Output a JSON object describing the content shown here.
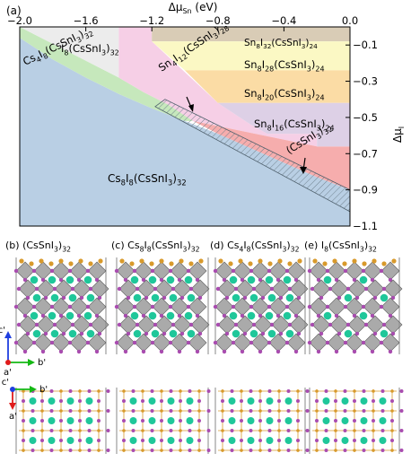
{
  "colors": {
    "cs8i8": "#b9cfe4",
    "cs4i8": "#c6e8bc",
    "i8": "#ececec",
    "sn8i32": "#d9ccb6",
    "sn8i28": "#fbf8c4",
    "sn8i20": "#fbdca5",
    "sn8i16": "#ddd0e6",
    "sn4i12": "#f6cfe6",
    "cssni3": "#f6adad",
    "sn": "#d89a2c",
    "i": "#a94cb0",
    "cs": "#1fc79a",
    "octa": "#8e8e8e",
    "axis_c": "#1f3fe0",
    "axis_b": "#14b814",
    "axis_a": "#e01b1b"
  },
  "chart_data": {
    "type": "area",
    "panel_label": "(a)",
    "xlabel": "Δμ_Sn (eV)",
    "ylabel": "Δμ_I",
    "xlim": [
      -2.0,
      0.0
    ],
    "ylim": [
      -1.1,
      0.0
    ],
    "x_ticks": [
      -2.0,
      -1.6,
      -1.2,
      -0.8,
      -0.4,
      0.0
    ],
    "x_tick_labels": [
      "−2.0",
      "−1.6",
      "−1.2",
      "−0.8",
      "−0.4",
      "0.0"
    ],
    "y_ticks": [
      -0.1,
      -0.3,
      -0.5,
      -0.7,
      -0.9,
      -1.1
    ],
    "y_tick_labels": [
      "−0.1",
      "−0.3",
      "−0.5",
      "−0.7",
      "−0.9",
      "−1.1"
    ],
    "regions": [
      {
        "id": "cs8i8",
        "label": "Cs₈I₈(CsSnI₃)₃₂",
        "polygon": [
          [
            -2.0,
            -0.06
          ],
          [
            -1.8,
            -0.18
          ],
          [
            -1.6,
            -0.28
          ],
          [
            -1.4,
            -0.37
          ],
          [
            -1.2,
            -0.45
          ],
          [
            -1.0,
            -0.52
          ],
          [
            -0.8,
            -0.59
          ],
          [
            -0.6,
            -0.67
          ],
          [
            -0.4,
            -0.75
          ],
          [
            -0.2,
            -0.83
          ],
          [
            0.0,
            -0.9
          ],
          [
            0.0,
            -1.1
          ],
          [
            -2.0,
            -1.1
          ]
        ]
      },
      {
        "id": "cs4i8",
        "label": "Cs₄I₈(CsSnI₃)₃₂",
        "polygon": [
          [
            -2.0,
            -0.06
          ],
          [
            -2.0,
            0.0
          ],
          [
            -1.4,
            -0.28
          ],
          [
            -1.25,
            -0.36
          ],
          [
            -1.1,
            -0.43
          ],
          [
            -0.95,
            -0.52
          ],
          [
            -1.0,
            -0.52
          ],
          [
            -1.2,
            -0.45
          ],
          [
            -1.4,
            -0.37
          ],
          [
            -1.6,
            -0.28
          ],
          [
            -1.8,
            -0.18
          ]
        ]
      },
      {
        "id": "i8",
        "label": "I₈(CsSnI₃)₃₂",
        "polygon": [
          [
            -2.0,
            0.0
          ],
          [
            -1.4,
            0.0
          ],
          [
            -1.4,
            -0.28
          ]
        ]
      },
      {
        "id": "sn4i12",
        "label": "Sn₄I₁₂(CsSnI₃)₂₈",
        "polygon": [
          [
            -1.4,
            0.0
          ],
          [
            -1.2,
            0.0
          ],
          [
            -1.2,
            -0.08
          ],
          [
            -0.8,
            -0.42
          ],
          [
            -0.6,
            -0.54
          ],
          [
            -0.5,
            -0.59
          ],
          [
            -0.2,
            -0.59
          ],
          [
            -0.2,
            -0.66
          ],
          [
            -0.95,
            -0.52
          ],
          [
            -1.1,
            -0.43
          ],
          [
            -1.25,
            -0.36
          ],
          [
            -1.4,
            -0.28
          ]
        ]
      },
      {
        "id": "cssni3",
        "label": "(CsSnI₃)₃₂",
        "polygon": [
          [
            -0.2,
            -0.66
          ],
          [
            0.0,
            -0.66
          ],
          [
            0.0,
            -0.9
          ],
          [
            -0.2,
            -0.83
          ],
          [
            -0.4,
            -0.75
          ],
          [
            -0.6,
            -0.67
          ],
          [
            -0.8,
            -0.59
          ],
          [
            -0.95,
            -0.52
          ]
        ]
      },
      {
        "id": "sn8i32",
        "label": "Sn₈I₃₂(CsSnI₃)₂₄",
        "polygon": [
          [
            -1.2,
            0.0
          ],
          [
            0.0,
            0.0
          ],
          [
            0.0,
            -0.08
          ],
          [
            -1.2,
            -0.08
          ]
        ]
      },
      {
        "id": "sn8i28",
        "label": "Sn₈I₂₈(CsSnI₃)₂₄",
        "polygon": [
          [
            -1.2,
            -0.08
          ],
          [
            0.0,
            -0.08
          ],
          [
            0.0,
            -0.24
          ],
          [
            -1.0,
            -0.24
          ]
        ]
      },
      {
        "id": "sn8i20",
        "label": "Sn₈I₂₀(CsSnI₃)₂₄",
        "polygon": [
          [
            -1.0,
            -0.24
          ],
          [
            0.0,
            -0.24
          ],
          [
            0.0,
            -0.42
          ],
          [
            -0.8,
            -0.42
          ]
        ]
      },
      {
        "id": "sn8i16",
        "label": "Sn₈I₁₆(CsSnI₃)₂₄",
        "polygon": [
          [
            -0.8,
            -0.42
          ],
          [
            0.0,
            -0.42
          ],
          [
            0.0,
            -0.66
          ],
          [
            -0.2,
            -0.66
          ],
          [
            -0.2,
            -0.59
          ],
          [
            -0.5,
            -0.59
          ],
          [
            -0.6,
            -0.54
          ]
        ]
      }
    ],
    "hatched_band": [
      [
        -1.18,
        -0.44
      ],
      [
        -1.12,
        -0.4
      ],
      [
        0.0,
        -0.9
      ],
      [
        0.0,
        -1.02
      ]
    ]
  },
  "labels": {
    "sn8i32": [
      "Sn",
      "8",
      "I",
      "32",
      "(CsSnI",
      "3",
      ")",
      "24"
    ],
    "sn8i28": [
      "Sn",
      "8",
      "I",
      "28",
      "(CsSnI",
      "3",
      ")",
      "24"
    ],
    "sn8i20": [
      "Sn",
      "8",
      "I",
      "20",
      "(CsSnI",
      "3",
      ")",
      "24"
    ],
    "sn8i16": [
      "Sn",
      "8",
      "I",
      "16",
      "(CsSnI",
      "3",
      ")",
      "24"
    ],
    "sn4i12": [
      "Sn",
      "4",
      "I",
      "12",
      "(CsSnI",
      "3",
      ")",
      "28"
    ],
    "i8": [
      "I",
      "8",
      "(CsSnI",
      "3",
      ")",
      "32"
    ],
    "cs4i8": [
      "Cs",
      "4",
      "I",
      "8",
      "(CsSnI",
      "3",
      ")",
      "32"
    ],
    "cs8i8": [
      "Cs",
      "8",
      "I",
      "8",
      "(CsSnI",
      "3",
      ")",
      "32"
    ],
    "cssni3": [
      "(CsSnI",
      "3",
      ")",
      "32"
    ]
  },
  "axis_titles": {
    "x": [
      "Δμ",
      "Sn",
      " (eV)"
    ],
    "y": [
      "Δμ",
      "I"
    ]
  },
  "panels": [
    {
      "tag": "(b)",
      "name": [
        "(CsSnI",
        "3",
        ")",
        "32"
      ],
      "atoms": "surface"
    },
    {
      "tag": "(c)",
      "name": [
        "Cs",
        "8",
        "I",
        "8",
        "(CsSnI",
        "3",
        ")",
        "32"
      ],
      "atoms": "surface"
    },
    {
      "tag": "(d)",
      "name": [
        "Cs",
        "4",
        "I",
        "8",
        "(CsSnI",
        "3",
        ")",
        "32"
      ],
      "atoms": "surface"
    },
    {
      "tag": "(e)",
      "name": [
        "I",
        "8",
        "(CsSnI",
        "3",
        ")",
        "32"
      ],
      "atoms": "sparse"
    }
  ],
  "crystal_axes": {
    "side": {
      "up": "c'",
      "right": "b'",
      "origin": "a'"
    },
    "top": {
      "up": "c'",
      "right": "b'",
      "down": "a'"
    }
  }
}
